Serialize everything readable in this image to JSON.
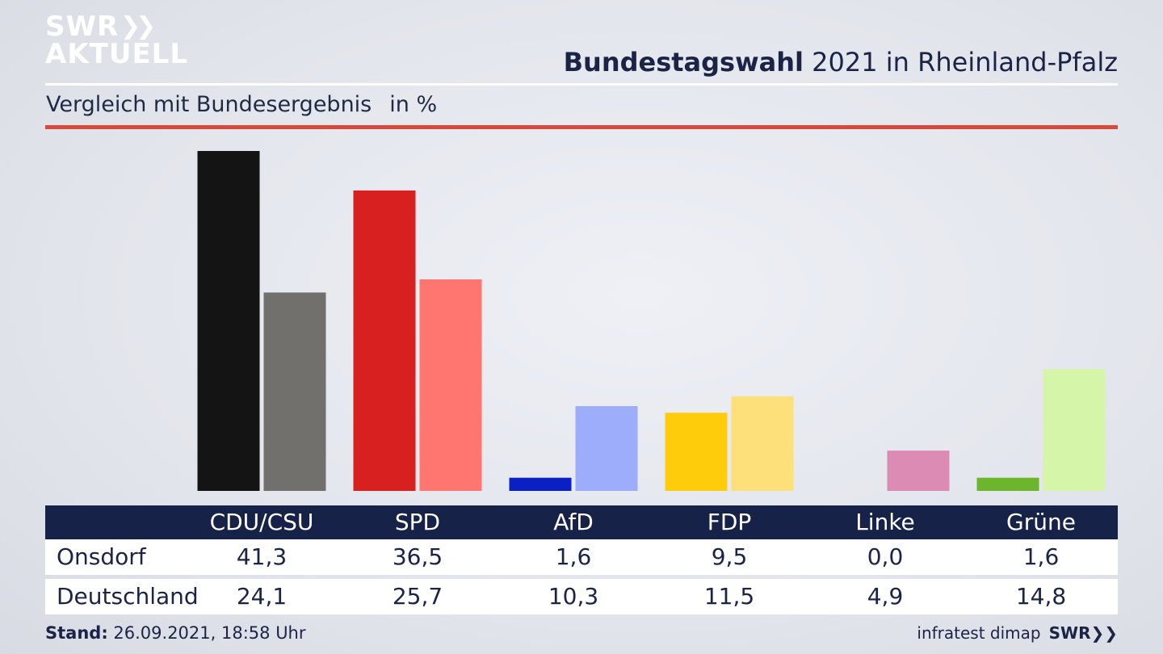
{
  "logo": {
    "line1": "SWR",
    "line2": "AKTUELL"
  },
  "header": {
    "title_bold": "Bundestagswahl",
    "title_rest": "2021 in Rheinland-Pfalz"
  },
  "subtitle": {
    "text": "Vergleich mit Bundesergebnis",
    "unit": "in %"
  },
  "colors": {
    "onsdorf": [
      "#141414",
      "#d7201f",
      "#0a20c2",
      "#fecc0a",
      "#dc8bb5",
      "#6cb52d"
    ],
    "deutschland": [
      "#71706c",
      "#ff7570",
      "#9eacfc",
      "#fde07a",
      "#dc8bb5",
      "#d5f5a8"
    ],
    "header_bg": "#172248",
    "accent_rule": "#d8483b"
  },
  "chart_data": {
    "type": "bar",
    "categories": [
      "CDU/CSU",
      "SPD",
      "AfD",
      "FDP",
      "Linke",
      "Grüne"
    ],
    "series": [
      {
        "name": "Onsdorf",
        "values": [
          41.3,
          36.5,
          1.6,
          9.5,
          0.0,
          1.6
        ]
      },
      {
        "name": "Deutschland",
        "values": [
          24.1,
          25.7,
          10.3,
          11.5,
          4.9,
          14.8
        ]
      }
    ],
    "value_labels": {
      "Onsdorf": [
        "41,3",
        "36,5",
        "1,6",
        "9,5",
        "0,0",
        "1,6"
      ],
      "Deutschland": [
        "24,1",
        "25,7",
        "10,3",
        "11,5",
        "4,9",
        "14,8"
      ]
    },
    "ylim": [
      0,
      41.3
    ],
    "grid": false
  },
  "footer": {
    "stand_label": "Stand:",
    "stand_value": "26.09.2021, 18:58 Uhr",
    "source": "infratest dimap",
    "brand": "SWR"
  }
}
